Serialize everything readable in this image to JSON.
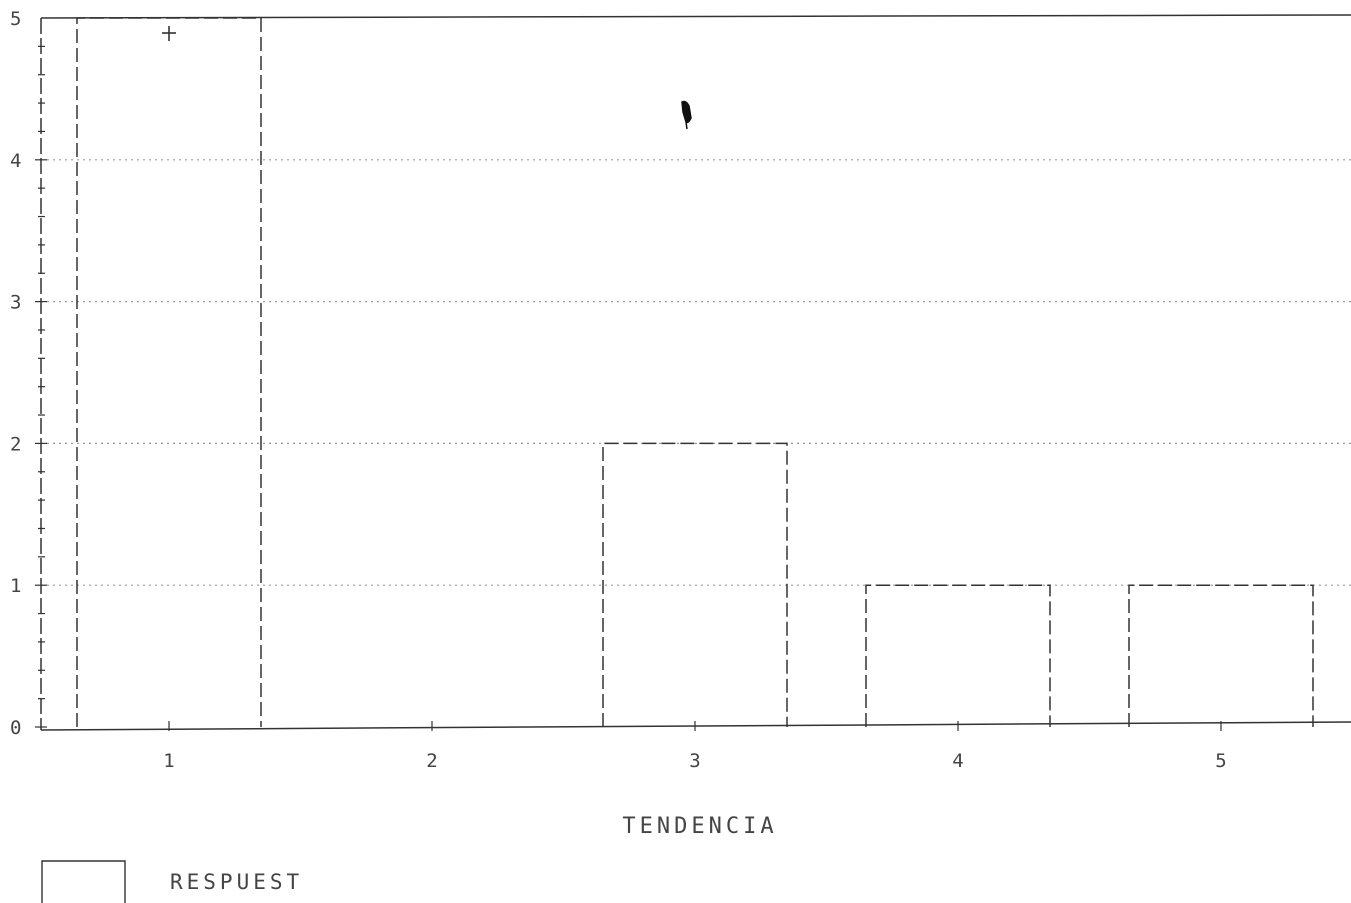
{
  "chart_data": {
    "type": "bar",
    "categories": [
      "1",
      "2",
      "3",
      "4",
      "5"
    ],
    "values": [
      5,
      0,
      2,
      1,
      1
    ],
    "xlabel": "TENDENCIA",
    "ylabel": "",
    "ylim": [
      0,
      5
    ],
    "yticks": [
      "0",
      "1",
      "2",
      "3",
      "4",
      "5"
    ],
    "grid": "horizontal-dotted",
    "legend": {
      "position": "bottom-left",
      "entries": [
        "RESPUEST"
      ]
    },
    "bar_style": "dashed-outline",
    "colors": {
      "line": "#333333",
      "grid": "#9a9a9a",
      "background": "#ffffff"
    }
  }
}
